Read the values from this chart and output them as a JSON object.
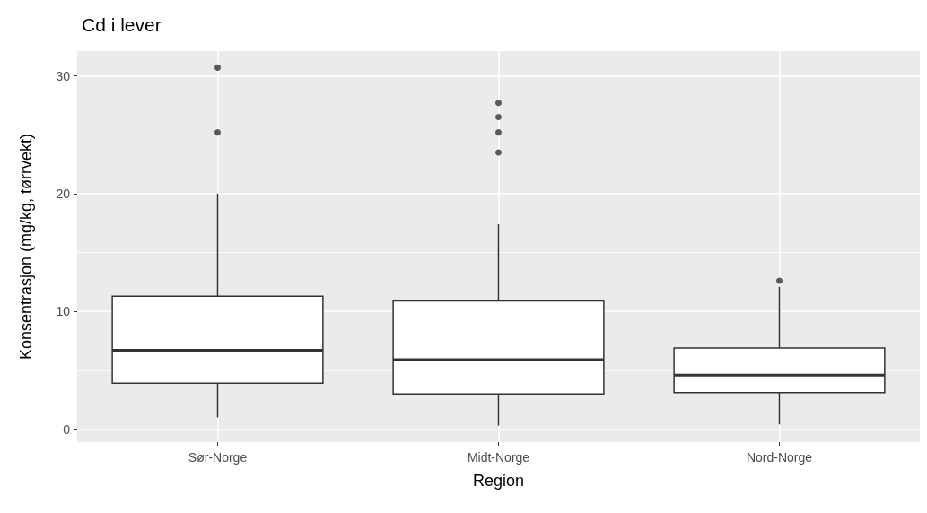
{
  "chart_data": {
    "type": "box",
    "title": "Cd i lever",
    "xlabel": "Region",
    "ylabel": "Konsentrasjon (mg/kg, tørrvekt)",
    "categories": [
      "Sør-Norge",
      "Midt-Norge",
      "Nord-Norge"
    ],
    "boxes": [
      {
        "low": 1.0,
        "q1": 3.9,
        "median": 6.7,
        "q3": 11.3,
        "high": 20.0,
        "outliers": [
          30.7,
          25.2
        ]
      },
      {
        "low": 0.3,
        "q1": 3.0,
        "median": 5.9,
        "q3": 10.9,
        "high": 17.4,
        "outliers": [
          27.7,
          26.5,
          25.2,
          23.5
        ]
      },
      {
        "low": 0.4,
        "q1": 3.1,
        "median": 4.6,
        "q3": 6.9,
        "high": 12.1,
        "outliers": [
          12.6
        ]
      }
    ],
    "ylim": [
      -1.1,
      32.1
    ],
    "yticks": [
      0,
      {
        "value": 5,
        "label": null
      },
      10,
      {
        "value": 15,
        "label": null
      },
      20,
      {
        "value": 25,
        "label": null
      },
      30
    ],
    "grid": true
  }
}
